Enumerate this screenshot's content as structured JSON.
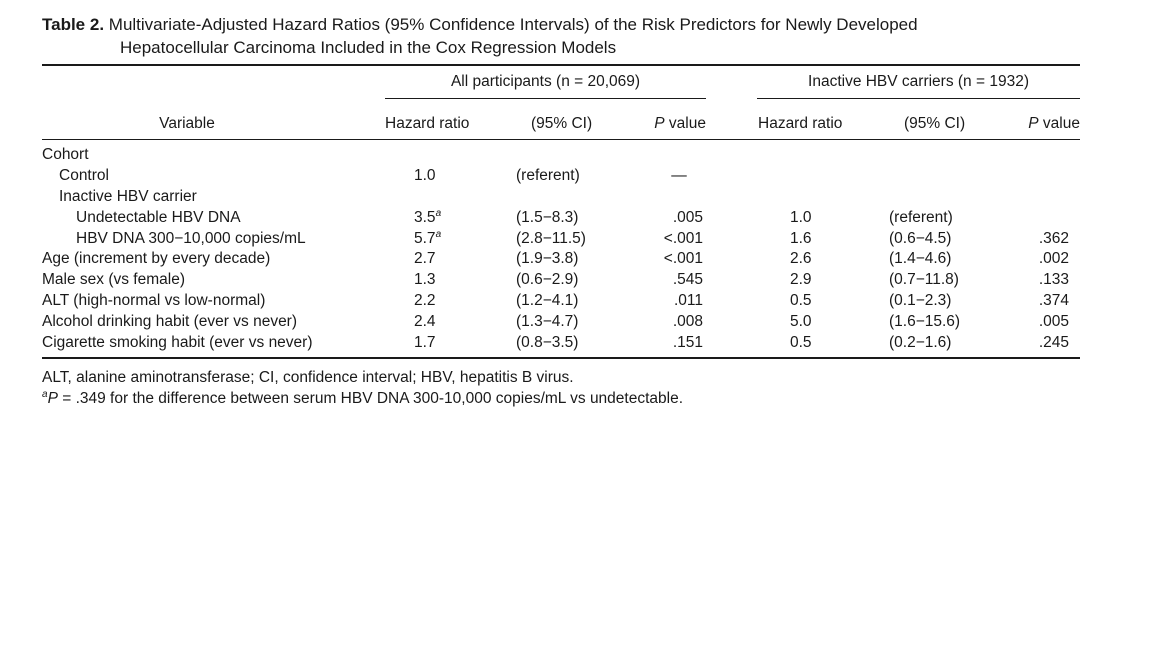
{
  "caption": {
    "label": "Table 2.",
    "title_line1": "Multivariate-Adjusted Hazard Ratios (95% Confidence Intervals) of the Risk Predictors for Newly Developed",
    "title_line2": "Hepatocellular Carcinoma Included in the Cox Regression Models"
  },
  "groups": {
    "all": "All participants (n = 20,069)",
    "inactive": "Inactive HBV carriers (n = 1932)"
  },
  "columns": {
    "variable": "Variable",
    "hr1": "Hazard ratio",
    "ci1": "(95% CI)",
    "p1_italic": "P",
    "p1_rest": " value",
    "hr2": "Hazard ratio",
    "ci2": "(95% CI)",
    "p2_italic": "P",
    "p2_rest": " value"
  },
  "rows": [
    {
      "label": "Cohort",
      "hr1": "",
      "hr1_sup": "",
      "ci1": "",
      "p1": "",
      "hr2": "",
      "ci2": "",
      "p2": ""
    },
    {
      "label": "Control",
      "hr1": "1.0",
      "hr1_sup": "",
      "ci1": "(referent)",
      "p1": "—",
      "hr2": "",
      "ci2": "",
      "p2": ""
    },
    {
      "label": "Inactive HBV carrier",
      "hr1": "",
      "hr1_sup": "",
      "ci1": "",
      "p1": "",
      "hr2": "",
      "ci2": "",
      "p2": ""
    },
    {
      "label": "Undetectable HBV DNA",
      "hr1": "3.5",
      "hr1_sup": "a",
      "ci1": "(1.5−8.3)",
      "p1": ".005",
      "hr2": "1.0",
      "ci2": "(referent)",
      "p2": ""
    },
    {
      "label": "HBV DNA 300−10,000 copies/mL",
      "hr1": "5.7",
      "hr1_sup": "a",
      "ci1": "(2.8−11.5)",
      "p1": "<.001",
      "hr2": "1.6",
      "ci2": "(0.6−4.5)",
      "p2": ".362"
    },
    {
      "label": "Age (increment by every decade)",
      "hr1": "2.7",
      "hr1_sup": "",
      "ci1": "(1.9−3.8)",
      "p1": "<.001",
      "hr2": "2.6",
      "ci2": "(1.4−4.6)",
      "p2": ".002"
    },
    {
      "label": "Male sex (vs female)",
      "hr1": "1.3",
      "hr1_sup": "",
      "ci1": "(0.6−2.9)",
      "p1": ".545",
      "hr2": "2.9",
      "ci2": "(0.7−11.8)",
      "p2": ".133"
    },
    {
      "label": "ALT (high-normal vs low-normal)",
      "hr1": "2.2",
      "hr1_sup": "",
      "ci1": "(1.2−4.1)",
      "p1": ".011",
      "hr2": "0.5",
      "ci2": "(0.1−2.3)",
      "p2": ".374"
    },
    {
      "label": "Alcohol drinking habit (ever vs never)",
      "hr1": "2.4",
      "hr1_sup": "",
      "ci1": "(1.3−4.7)",
      "p1": ".008",
      "hr2": "5.0",
      "ci2": "(1.6−15.6)",
      "p2": ".005"
    },
    {
      "label": "Cigarette smoking habit (ever vs never)",
      "hr1": "1.7",
      "hr1_sup": "",
      "ci1": "(0.8−3.5)",
      "p1": ".151",
      "hr2": "0.5",
      "ci2": "(0.2−1.6)",
      "p2": ".245"
    }
  ],
  "footnotes": {
    "abbrev": "ALT, alanine aminotransferase; CI, confidence interval; HBV, hepatitis B virus.",
    "a_mark": "a",
    "a_p": "P",
    "a_text": " = .349 for the difference between serum HBV DNA 300-10,000 copies/mL vs undetectable."
  }
}
